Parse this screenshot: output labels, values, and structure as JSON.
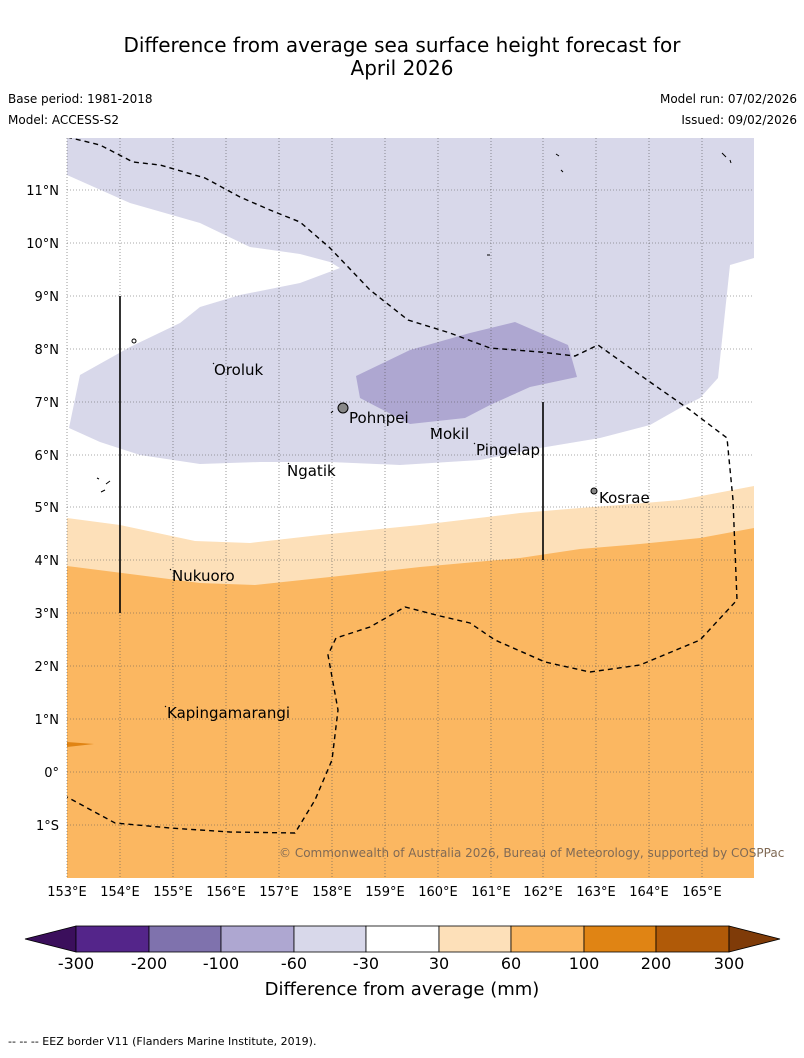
{
  "title": {
    "line1": "Difference from average sea surface height forecast for",
    "line2": "April 2026"
  },
  "meta": {
    "base_period": "Base period: 1981-2018",
    "model": "Model: ACCESS-S2",
    "model_run": "Model run: 07/02/2026",
    "issued": "Issued: 09/02/2026"
  },
  "map": {
    "lat_labels": [
      "11°N",
      "10°N",
      "9°N",
      "8°N",
      "7°N",
      "6°N",
      "5°N",
      "4°N",
      "3°N",
      "2°N",
      "1°N",
      "0°",
      "1°S"
    ],
    "lon_labels": [
      "153°E",
      "154°E",
      "155°E",
      "156°E",
      "157°E",
      "158°E",
      "159°E",
      "160°E",
      "161°E",
      "162°E",
      "163°E",
      "164°E",
      "165°E"
    ],
    "places": [
      "Oroluk",
      "Pohnpei",
      "Mokil",
      "Pingelap",
      "Ngatik",
      "Kosrae",
      "Nukuoro",
      "Kapingamarangi"
    ],
    "copyright": "© Commonwealth of Australia 2026, Bureau of Meteorology, supported by COSPPac"
  },
  "colorbar": {
    "ticks": [
      "-300",
      "-200",
      "-100",
      "-60",
      "-30",
      "30",
      "60",
      "100",
      "200",
      "300"
    ],
    "colors": [
      "#3b0f5c",
      "#54258a",
      "#7f72ad",
      "#aea7d1",
      "#d8d8ea",
      "#ffffff",
      "#fde0b9",
      "#fbb761",
      "#e08414",
      "#b05a08",
      "#7f3b08"
    ],
    "label": "Difference from average (mm)"
  },
  "footnote": "--  --  -- EEZ border V11 (Flanders Marine Institute, 2019)."
}
